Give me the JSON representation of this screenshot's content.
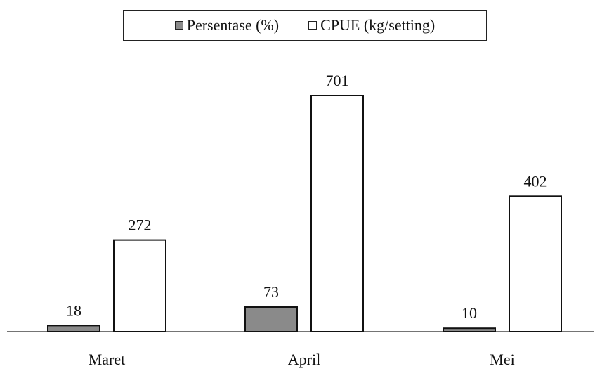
{
  "chart_data": {
    "type": "bar",
    "categories": [
      "Maret",
      "April",
      "Mei"
    ],
    "series": [
      {
        "name": "Persentase (%)",
        "values": [
          18,
          73,
          10
        ],
        "color": "#8a8a8a"
      },
      {
        "name": "CPUE (kg/setting)",
        "values": [
          272,
          701,
          402
        ],
        "color": "#ffffff"
      }
    ],
    "ylim": [
      0,
      750
    ],
    "grid": false,
    "legend_position": "top-center",
    "value_labels": true
  }
}
